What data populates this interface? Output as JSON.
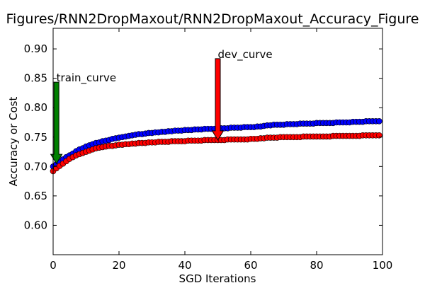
{
  "chart_data": {
    "type": "scatter",
    "title": "Figures/RNN2DropMaxout/RNN2DropMaxout_Accuracy_Figure",
    "xlabel": "SGD Iterations",
    "ylabel": "Accuracy or Cost",
    "xlim": [
      0,
      100
    ],
    "ylim": [
      0.55,
      0.935
    ],
    "xticks": [
      0,
      20,
      40,
      60,
      80,
      100
    ],
    "yticks": [
      0.6,
      0.65,
      0.7,
      0.75,
      0.8,
      0.85,
      0.9
    ],
    "grid": false,
    "series": [
      {
        "key": "train",
        "color": "#0000ff",
        "x": [
          0,
          1,
          2,
          3,
          4,
          5,
          6,
          7,
          8,
          9,
          10,
          11,
          12,
          13,
          14,
          15,
          16,
          17,
          18,
          19,
          20,
          21,
          22,
          23,
          24,
          25,
          26,
          27,
          28,
          29,
          30,
          31,
          32,
          33,
          34,
          35,
          36,
          37,
          38,
          39,
          40,
          41,
          42,
          43,
          44,
          45,
          46,
          47,
          48,
          49,
          50,
          51,
          52,
          53,
          54,
          55,
          56,
          57,
          58,
          59,
          60,
          61,
          62,
          63,
          64,
          65,
          66,
          67,
          68,
          69,
          70,
          71,
          72,
          73,
          74,
          75,
          76,
          77,
          78,
          79,
          80,
          81,
          82,
          83,
          84,
          85,
          86,
          87,
          88,
          89,
          90,
          91,
          92,
          93,
          94,
          95,
          96,
          97,
          98,
          99
        ],
        "y": [
          0.7,
          0.704,
          0.708,
          0.712,
          0.716,
          0.719,
          0.722,
          0.726,
          0.729,
          0.731,
          0.734,
          0.736,
          0.738,
          0.74,
          0.741,
          0.743,
          0.744,
          0.745,
          0.747,
          0.748,
          0.749,
          0.75,
          0.751,
          0.752,
          0.753,
          0.754,
          0.755,
          0.755,
          0.756,
          0.757,
          0.757,
          0.758,
          0.758,
          0.759,
          0.759,
          0.76,
          0.76,
          0.761,
          0.761,
          0.761,
          0.762,
          0.762,
          0.762,
          0.763,
          0.763,
          0.763,
          0.764,
          0.764,
          0.764,
          0.764,
          0.765,
          0.765,
          0.765,
          0.765,
          0.766,
          0.766,
          0.766,
          0.766,
          0.767,
          0.767,
          0.767,
          0.767,
          0.768,
          0.768,
          0.769,
          0.77,
          0.77,
          0.771,
          0.771,
          0.771,
          0.771,
          0.772,
          0.772,
          0.772,
          0.772,
          0.773,
          0.773,
          0.773,
          0.773,
          0.773,
          0.774,
          0.774,
          0.774,
          0.774,
          0.774,
          0.774,
          0.775,
          0.775,
          0.775,
          0.775,
          0.775,
          0.776,
          0.776,
          0.776,
          0.776,
          0.777,
          0.777,
          0.777,
          0.777,
          0.777
        ]
      },
      {
        "key": "dev",
        "color": "#ff0000",
        "x": [
          0,
          1,
          2,
          3,
          4,
          5,
          6,
          7,
          8,
          9,
          10,
          11,
          12,
          13,
          14,
          15,
          16,
          17,
          18,
          19,
          20,
          21,
          22,
          23,
          24,
          25,
          26,
          27,
          28,
          29,
          30,
          31,
          32,
          33,
          34,
          35,
          36,
          37,
          38,
          39,
          40,
          41,
          42,
          43,
          44,
          45,
          46,
          47,
          48,
          49,
          50,
          51,
          52,
          53,
          54,
          55,
          56,
          57,
          58,
          59,
          60,
          61,
          62,
          63,
          64,
          65,
          66,
          67,
          68,
          69,
          70,
          71,
          72,
          73,
          74,
          75,
          76,
          77,
          78,
          79,
          80,
          81,
          82,
          83,
          84,
          85,
          86,
          87,
          88,
          89,
          90,
          91,
          92,
          93,
          94,
          95,
          96,
          97,
          98,
          99
        ],
        "y": [
          0.692,
          0.697,
          0.701,
          0.705,
          0.709,
          0.713,
          0.716,
          0.719,
          0.721,
          0.723,
          0.725,
          0.727,
          0.729,
          0.731,
          0.732,
          0.733,
          0.734,
          0.735,
          0.735,
          0.736,
          0.737,
          0.737,
          0.738,
          0.738,
          0.739,
          0.739,
          0.74,
          0.74,
          0.74,
          0.741,
          0.741,
          0.741,
          0.742,
          0.742,
          0.742,
          0.742,
          0.743,
          0.743,
          0.743,
          0.743,
          0.743,
          0.744,
          0.744,
          0.744,
          0.744,
          0.744,
          0.745,
          0.745,
          0.745,
          0.745,
          0.745,
          0.745,
          0.745,
          0.746,
          0.746,
          0.746,
          0.746,
          0.746,
          0.746,
          0.746,
          0.747,
          0.747,
          0.747,
          0.748,
          0.748,
          0.749,
          0.749,
          0.749,
          0.749,
          0.75,
          0.75,
          0.75,
          0.75,
          0.75,
          0.75,
          0.75,
          0.751,
          0.751,
          0.751,
          0.751,
          0.751,
          0.751,
          0.751,
          0.751,
          0.751,
          0.752,
          0.752,
          0.752,
          0.752,
          0.752,
          0.752,
          0.752,
          0.752,
          0.752,
          0.753,
          0.753,
          0.753,
          0.753,
          0.753,
          0.753
        ]
      }
    ],
    "annotations": [
      {
        "text": "train_curve",
        "x": 1,
        "y": 0.705,
        "arrow_color": "#008000"
      },
      {
        "text": "dev_curve",
        "x": 50,
        "y": 0.745,
        "arrow_color": "#ff0000"
      }
    ]
  }
}
